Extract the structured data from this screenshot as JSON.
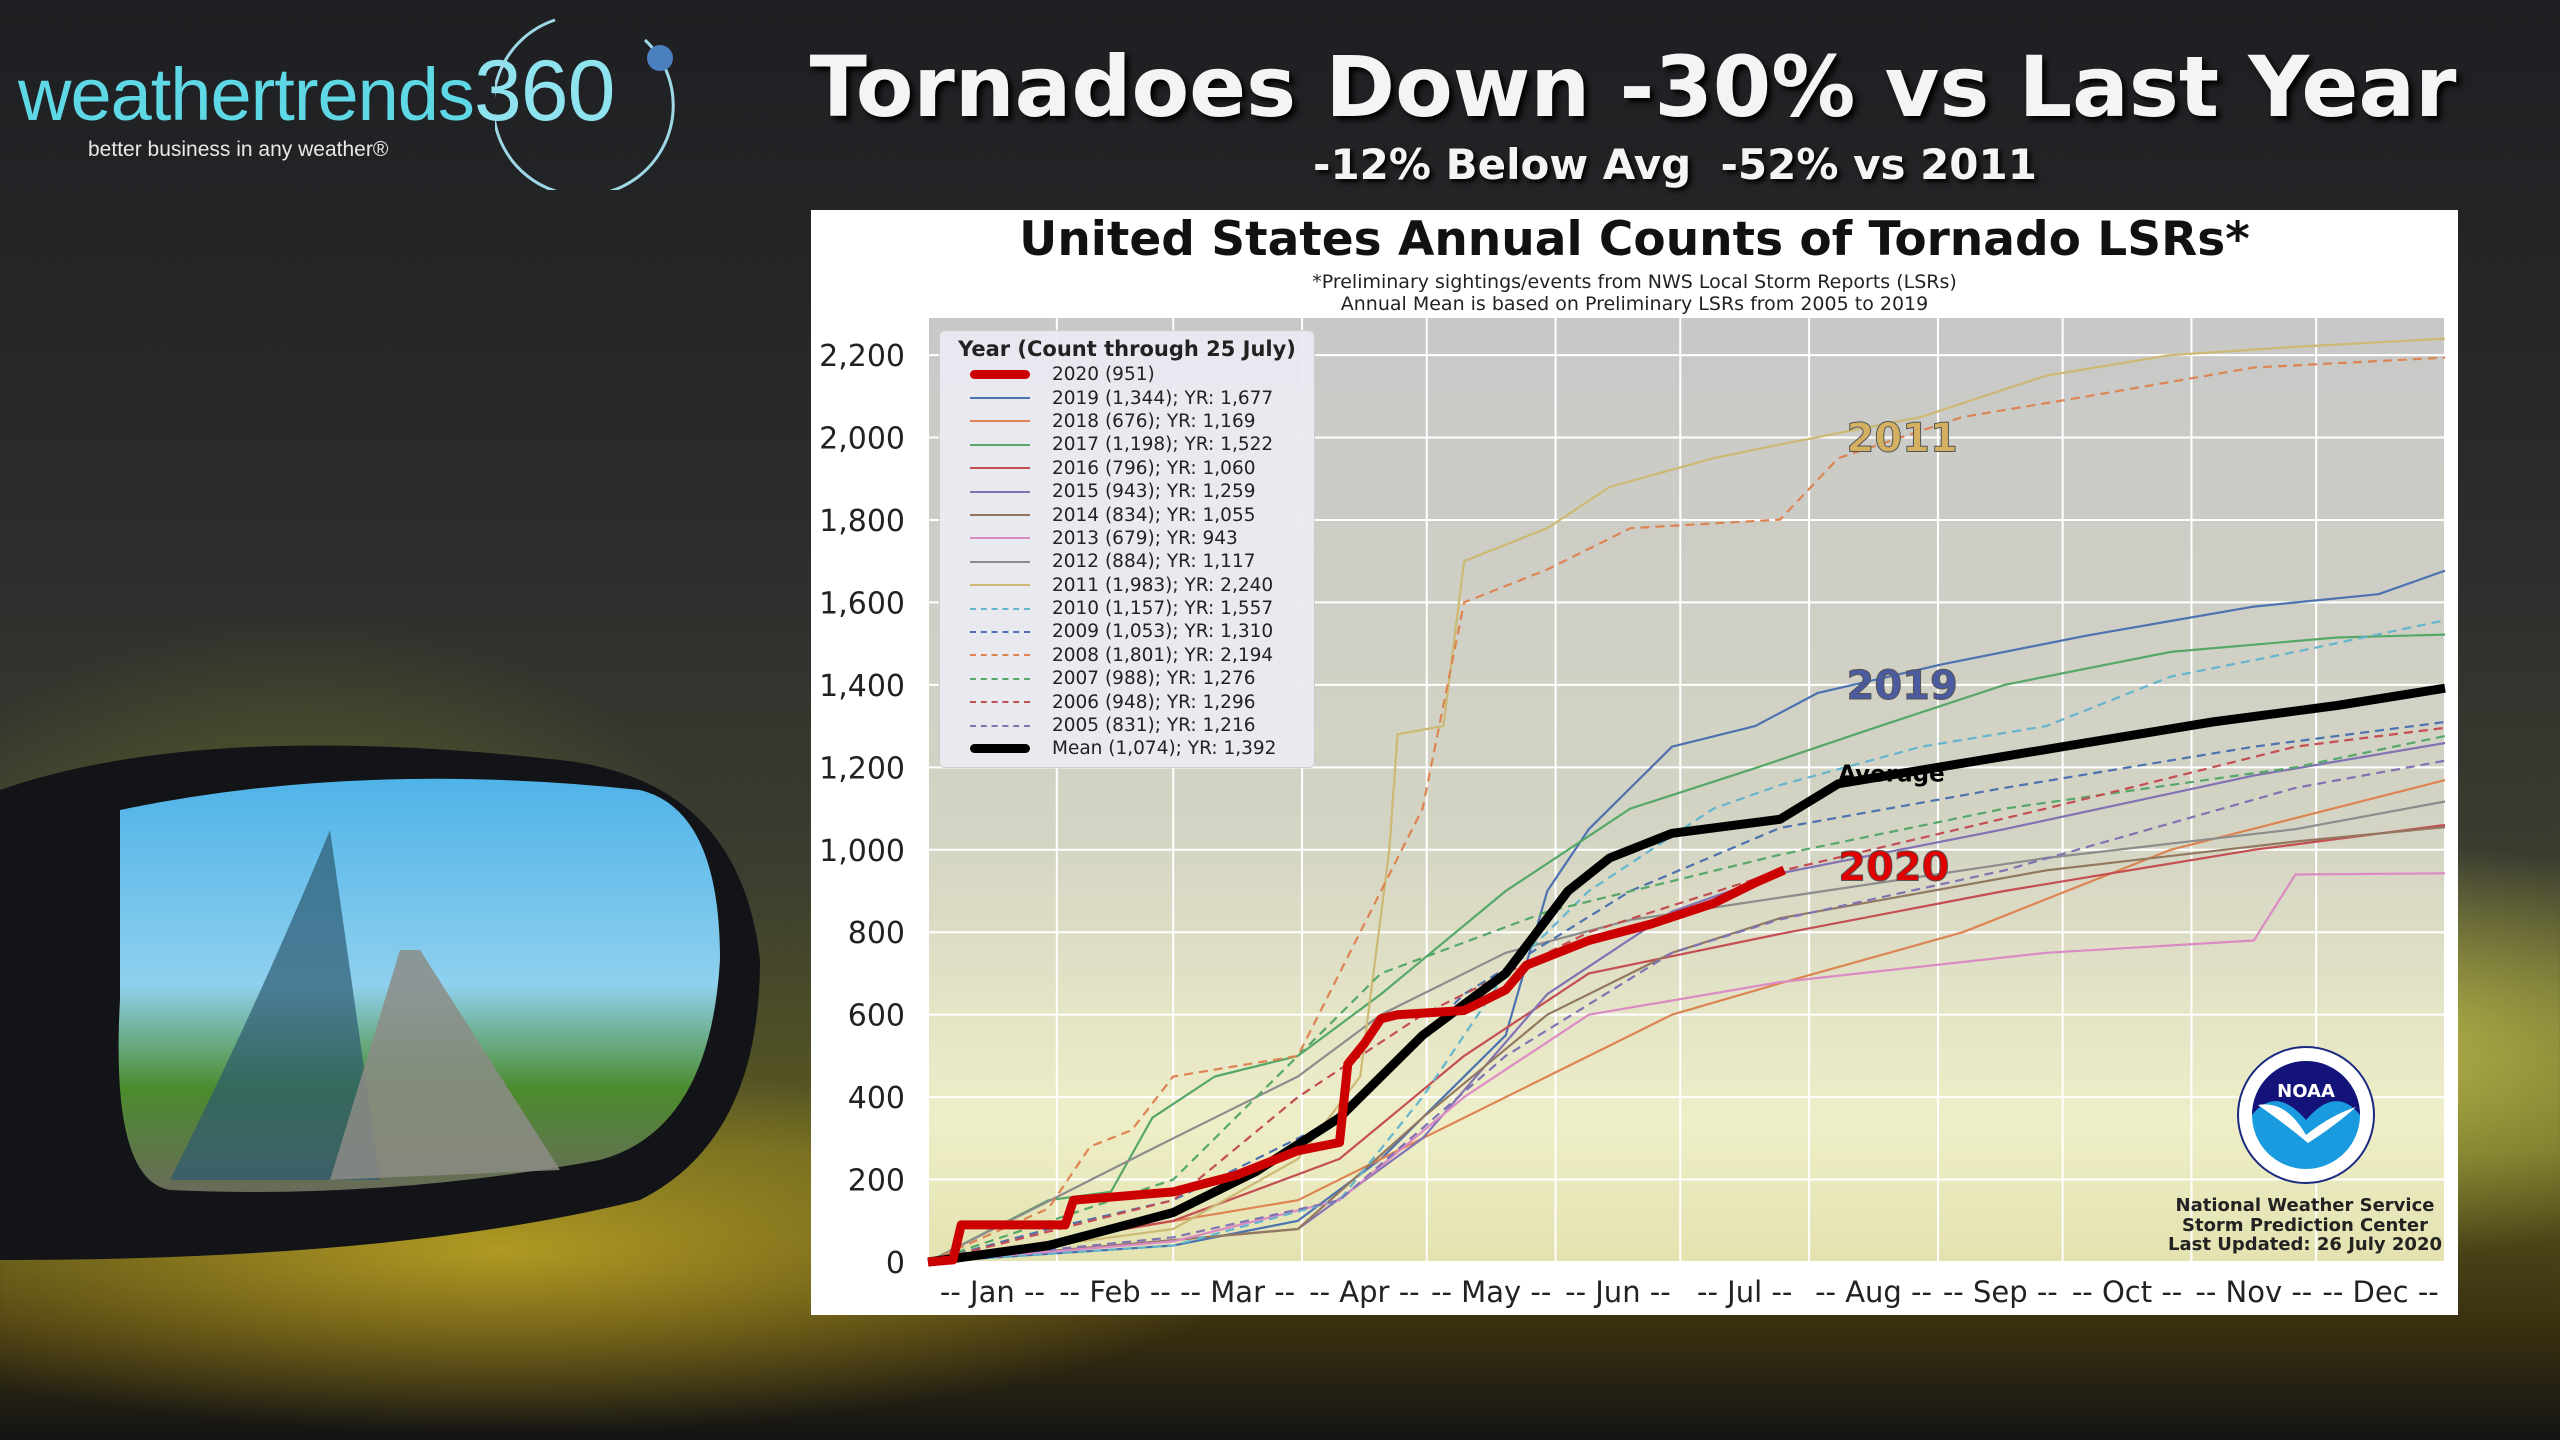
{
  "brand": {
    "name_word": "weathertrends",
    "name_number": "360",
    "tagline": "better business in any weather®"
  },
  "headline": "Tornadoes Down -30% vs Last Year",
  "subheadline": "-12% Below Avg  -52% vs 2011",
  "footer": {
    "line1": "National Weather Service",
    "line2": "Storm Prediction Center",
    "line3": "Last Updated: 26 July 2020",
    "logo_text": "NOAA"
  },
  "chart_data": {
    "type": "line",
    "title": "United States Annual Counts of Tornado LSRs*",
    "subtitle_lines": [
      "*Preliminary sightings/events from NWS Local Storm Reports (LSRs)",
      "Annual Mean is based on Preliminary LSRs from 2005 to 2019"
    ],
    "xlabel": "",
    "ylabel": "",
    "xlim": [
      1,
      366
    ],
    "ylim": [
      0,
      2290
    ],
    "grid": true,
    "yticks": [
      0,
      200,
      400,
      600,
      800,
      1000,
      1200,
      1400,
      1600,
      1800,
      2000,
      2200
    ],
    "ytick_labels": [
      "0",
      "200",
      "400",
      "600",
      "800",
      "1,000",
      "1,200",
      "1,400",
      "1,600",
      "1,800",
      "2,000",
      "2,200"
    ],
    "xtick_labels": [
      "-- Jan --",
      "-- Feb --",
      "-- Mar --",
      "-- Apr --",
      "-- May --",
      "-- Jun --",
      "-- Jul --",
      "-- Aug --",
      "-- Sep --",
      "-- Oct --",
      "-- Nov --",
      "-- Dec --"
    ],
    "x_unit": "day of year",
    "legend": {
      "title": "Year (Count through 25 July)",
      "placement": "upper-left"
    },
    "series": [
      {
        "name": "2020 (951)",
        "color": "#cc0000",
        "style": "solid",
        "bold": true,
        "points": [
          [
            1,
            0
          ],
          [
            7,
            5
          ],
          [
            9,
            90
          ],
          [
            34,
            90
          ],
          [
            36,
            150
          ],
          [
            60,
            170
          ],
          [
            75,
            210
          ],
          [
            90,
            270
          ],
          [
            100,
            290
          ],
          [
            102,
            480
          ],
          [
            106,
            530
          ],
          [
            110,
            590
          ],
          [
            114,
            600
          ],
          [
            130,
            610
          ],
          [
            140,
            660
          ],
          [
            145,
            720
          ],
          [
            160,
            780
          ],
          [
            175,
            820
          ],
          [
            190,
            870
          ],
          [
            200,
            920
          ],
          [
            207,
            951
          ]
        ]
      },
      {
        "name": "2019 (1,344); YR: 1,677",
        "color": "#4c72b0",
        "style": "solid",
        "points": [
          [
            1,
            0
          ],
          [
            60,
            40
          ],
          [
            90,
            100
          ],
          [
            110,
            250
          ],
          [
            140,
            550
          ],
          [
            150,
            900
          ],
          [
            160,
            1050
          ],
          [
            180,
            1250
          ],
          [
            200,
            1300
          ],
          [
            215,
            1380
          ],
          [
            245,
            1450
          ],
          [
            280,
            1520
          ],
          [
            320,
            1590
          ],
          [
            350,
            1620
          ],
          [
            366,
            1677
          ]
        ]
      },
      {
        "name": "2018 (676); YR: 1,169",
        "color": "#dd8452",
        "style": "solid",
        "points": [
          [
            1,
            0
          ],
          [
            90,
            150
          ],
          [
            120,
            300
          ],
          [
            150,
            450
          ],
          [
            180,
            600
          ],
          [
            206,
            676
          ],
          [
            250,
            800
          ],
          [
            300,
            1000
          ],
          [
            366,
            1169
          ]
        ]
      },
      {
        "name": "2017 (1,198); YR: 1,522",
        "color": "#55a868",
        "style": "solid",
        "points": [
          [
            1,
            0
          ],
          [
            30,
            150
          ],
          [
            45,
            170
          ],
          [
            55,
            350
          ],
          [
            70,
            450
          ],
          [
            90,
            500
          ],
          [
            110,
            650
          ],
          [
            140,
            900
          ],
          [
            170,
            1100
          ],
          [
            200,
            1198
          ],
          [
            230,
            1300
          ],
          [
            260,
            1400
          ],
          [
            300,
            1480
          ],
          [
            340,
            1515
          ],
          [
            366,
            1522
          ]
        ]
      },
      {
        "name": "2016 (796); YR: 1,060",
        "color": "#c44e52",
        "style": "solid",
        "points": [
          [
            1,
            0
          ],
          [
            60,
            100
          ],
          [
            100,
            250
          ],
          [
            130,
            500
          ],
          [
            160,
            700
          ],
          [
            206,
            796
          ],
          [
            260,
            900
          ],
          [
            320,
            1000
          ],
          [
            366,
            1060
          ]
        ]
      },
      {
        "name": "2015 (943); YR: 1,259",
        "color": "#8172b3",
        "style": "solid",
        "points": [
          [
            1,
            0
          ],
          [
            90,
            80
          ],
          [
            120,
            300
          ],
          [
            150,
            650
          ],
          [
            180,
            850
          ],
          [
            206,
            943
          ],
          [
            260,
            1050
          ],
          [
            320,
            1180
          ],
          [
            366,
            1259
          ]
        ]
      },
      {
        "name": "2014 (834); YR: 1,055",
        "color": "#937860",
        "style": "solid",
        "points": [
          [
            1,
            0
          ],
          [
            90,
            80
          ],
          [
            120,
            350
          ],
          [
            150,
            600
          ],
          [
            180,
            750
          ],
          [
            206,
            834
          ],
          [
            270,
            950
          ],
          [
            330,
            1020
          ],
          [
            366,
            1055
          ]
        ]
      },
      {
        "name": "2013 (679); YR: 943",
        "color": "#da8bc3",
        "style": "solid",
        "points": [
          [
            1,
            0
          ],
          [
            60,
            50
          ],
          [
            100,
            150
          ],
          [
            130,
            400
          ],
          [
            160,
            600
          ],
          [
            206,
            679
          ],
          [
            270,
            750
          ],
          [
            320,
            780
          ],
          [
            330,
            940
          ],
          [
            366,
            943
          ]
        ]
      },
      {
        "name": "2012 (884); YR: 1,117",
        "color": "#8c8c8c",
        "style": "solid",
        "points": [
          [
            1,
            0
          ],
          [
            60,
            300
          ],
          [
            90,
            450
          ],
          [
            110,
            600
          ],
          [
            140,
            750
          ],
          [
            170,
            830
          ],
          [
            206,
            884
          ],
          [
            270,
            980
          ],
          [
            330,
            1050
          ],
          [
            366,
            1117
          ]
        ]
      },
      {
        "name": "2011 (1,983); YR: 2,240",
        "color": "#ccb974",
        "style": "solid",
        "points": [
          [
            1,
            0
          ],
          [
            60,
            80
          ],
          [
            90,
            250
          ],
          [
            105,
            450
          ],
          [
            112,
            1000
          ],
          [
            114,
            1280
          ],
          [
            125,
            1300
          ],
          [
            130,
            1700
          ],
          [
            150,
            1780
          ],
          [
            165,
            1880
          ],
          [
            190,
            1950
          ],
          [
            206,
            1983
          ],
          [
            240,
            2050
          ],
          [
            270,
            2150
          ],
          [
            300,
            2200
          ],
          [
            330,
            2220
          ],
          [
            366,
            2240
          ]
        ]
      },
      {
        "name": "2010 (1,157); YR: 1,557",
        "color": "#64b5cd",
        "style": "dashed",
        "points": [
          [
            1,
            0
          ],
          [
            60,
            40
          ],
          [
            100,
            150
          ],
          [
            120,
            400
          ],
          [
            140,
            700
          ],
          [
            160,
            900
          ],
          [
            190,
            1100
          ],
          [
            206,
            1157
          ],
          [
            240,
            1250
          ],
          [
            270,
            1300
          ],
          [
            300,
            1420
          ],
          [
            330,
            1480
          ],
          [
            366,
            1557
          ]
        ]
      },
      {
        "name": "2009 (1,053); YR: 1,310",
        "color": "#4c72b0",
        "style": "dashed",
        "points": [
          [
            1,
            0
          ],
          [
            30,
            80
          ],
          [
            60,
            150
          ],
          [
            100,
            350
          ],
          [
            130,
            650
          ],
          [
            170,
            900
          ],
          [
            206,
            1053
          ],
          [
            260,
            1150
          ],
          [
            320,
            1250
          ],
          [
            366,
            1310
          ]
        ]
      },
      {
        "name": "2008 (1,801); YR: 2,194",
        "color": "#dd8452",
        "style": "dashed",
        "points": [
          [
            1,
            0
          ],
          [
            30,
            130
          ],
          [
            40,
            280
          ],
          [
            50,
            320
          ],
          [
            60,
            450
          ],
          [
            90,
            500
          ],
          [
            105,
            800
          ],
          [
            120,
            1100
          ],
          [
            130,
            1600
          ],
          [
            150,
            1680
          ],
          [
            170,
            1780
          ],
          [
            206,
            1801
          ],
          [
            220,
            1950
          ],
          [
            250,
            2050
          ],
          [
            280,
            2100
          ],
          [
            320,
            2170
          ],
          [
            366,
            2194
          ]
        ]
      },
      {
        "name": "2007 (988); YR: 1,276",
        "color": "#55a868",
        "style": "dashed",
        "points": [
          [
            1,
            0
          ],
          [
            60,
            200
          ],
          [
            90,
            500
          ],
          [
            110,
            700
          ],
          [
            150,
            850
          ],
          [
            206,
            988
          ],
          [
            260,
            1100
          ],
          [
            330,
            1200
          ],
          [
            366,
            1276
          ]
        ]
      },
      {
        "name": "2006 (948); YR: 1,296",
        "color": "#c44e52",
        "style": "dashed",
        "points": [
          [
            1,
            0
          ],
          [
            60,
            150
          ],
          [
            90,
            400
          ],
          [
            120,
            600
          ],
          [
            160,
            800
          ],
          [
            206,
            948
          ],
          [
            270,
            1100
          ],
          [
            330,
            1250
          ],
          [
            366,
            1296
          ]
        ]
      },
      {
        "name": "2005 (831); YR: 1,216",
        "color": "#8172b3",
        "style": "dashed",
        "points": [
          [
            1,
            0
          ],
          [
            60,
            60
          ],
          [
            100,
            150
          ],
          [
            140,
            500
          ],
          [
            180,
            750
          ],
          [
            206,
            831
          ],
          [
            260,
            950
          ],
          [
            330,
            1150
          ],
          [
            366,
            1216
          ]
        ]
      },
      {
        "name": "Mean (1,074); YR: 1,392",
        "color": "#000000",
        "style": "solid",
        "bold": true,
        "points": [
          [
            1,
            0
          ],
          [
            30,
            40
          ],
          [
            60,
            120
          ],
          [
            80,
            220
          ],
          [
            100,
            350
          ],
          [
            120,
            550
          ],
          [
            140,
            700
          ],
          [
            155,
            900
          ],
          [
            165,
            980
          ],
          [
            180,
            1040
          ],
          [
            206,
            1074
          ],
          [
            220,
            1160
          ],
          [
            250,
            1210
          ],
          [
            280,
            1260
          ],
          [
            310,
            1310
          ],
          [
            340,
            1350
          ],
          [
            366,
            1392
          ]
        ]
      }
    ],
    "annotations": [
      {
        "text": "2011",
        "x": 222,
        "y": 2000,
        "color": "#d4b060"
      },
      {
        "text": "2019",
        "x": 222,
        "y": 1400,
        "color": "#4c5aa0"
      },
      {
        "text": "Average",
        "x": 220,
        "y": 1185,
        "color": "#000000"
      },
      {
        "text": "2020",
        "x": 220,
        "y": 960,
        "color": "#e00000"
      }
    ]
  }
}
